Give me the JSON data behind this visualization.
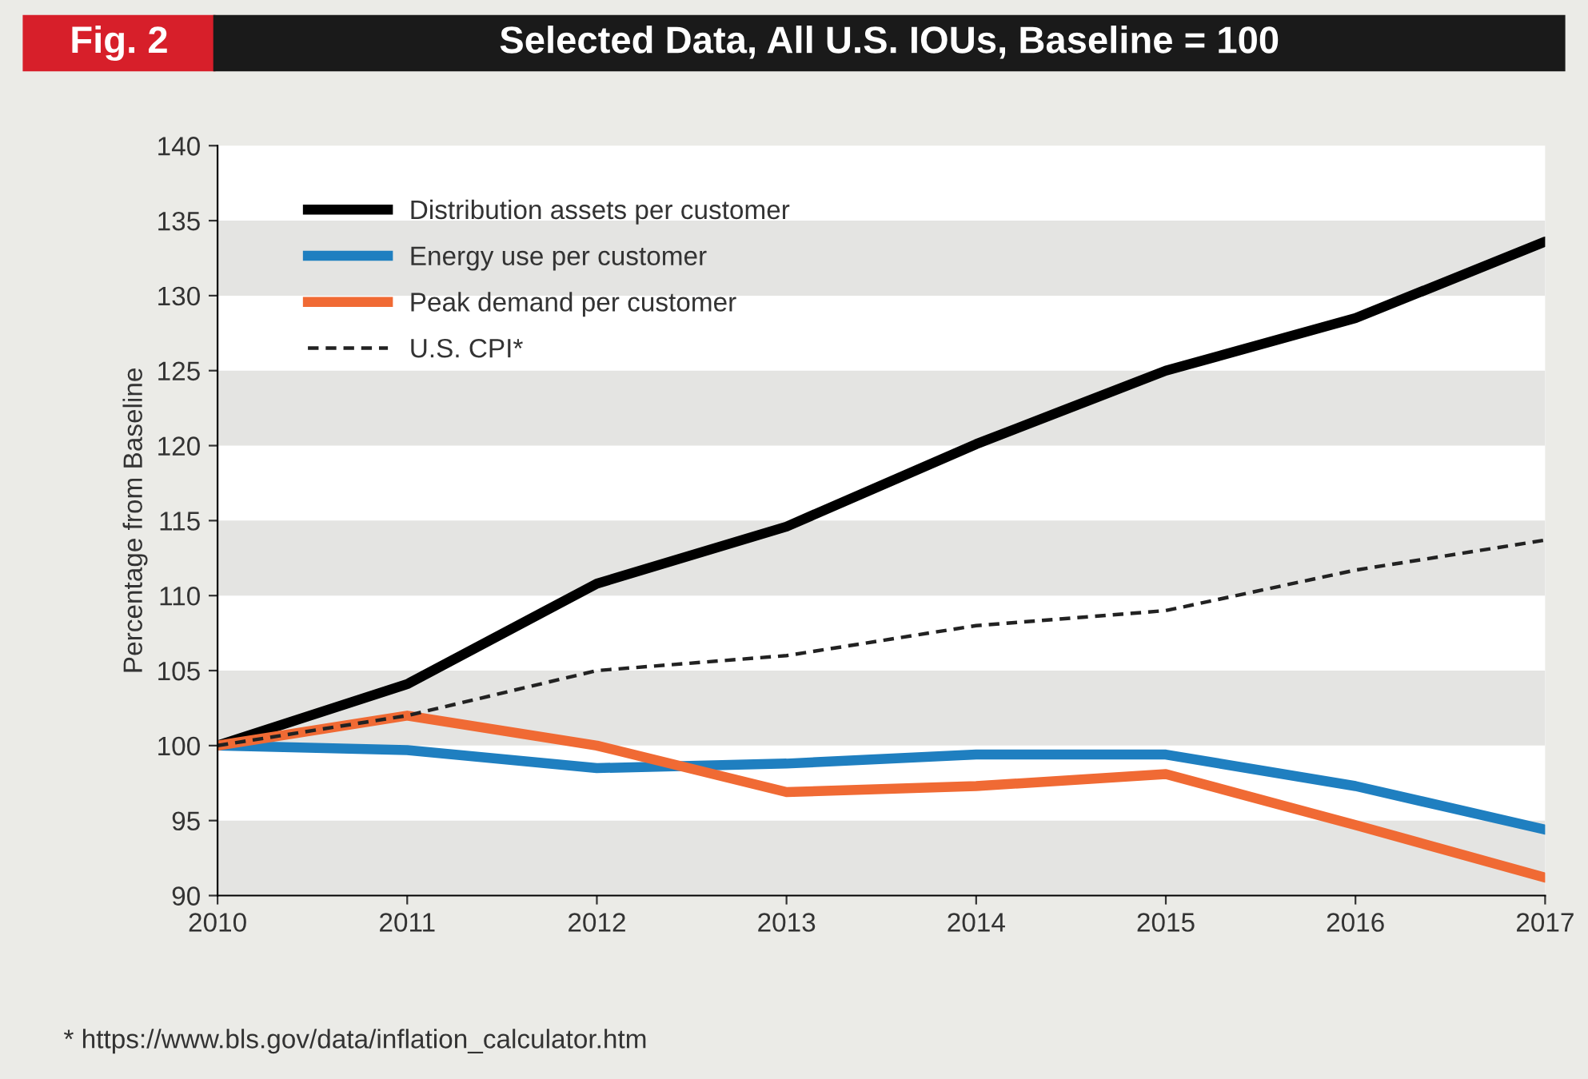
{
  "chart_data": {
    "type": "line",
    "title": "Selected Data, All U.S. IOUs, Baseline = 100",
    "ylabel": "Percentage from Baseline",
    "x": [
      2010,
      2011,
      2012,
      2013,
      2014,
      2015,
      2016,
      2017
    ],
    "series": [
      {
        "name": "Distribution assets per customer",
        "color": "#000000",
        "values": [
          100,
          104.1,
          110.8,
          114.6,
          120.1,
          125.0,
          128.5,
          133.6
        ]
      },
      {
        "name": "Energy use per customer",
        "color": "#1f7fc0",
        "values": [
          100,
          99.7,
          98.5,
          98.8,
          99.4,
          99.4,
          97.3,
          94.4
        ]
      },
      {
        "name": "Peak demand per customer",
        "color": "#f06a34",
        "values": [
          100,
          102,
          100,
          96.9,
          97.3,
          98.1,
          94.7,
          91.2
        ]
      },
      {
        "name": "U.S. CPI*",
        "color": "#222222",
        "line_style": "dashed",
        "values": [
          100,
          102,
          105,
          106,
          108,
          109,
          111.7,
          113.7
        ]
      }
    ],
    "xlim": [
      2010,
      2017
    ],
    "xticks": [
      2010,
      2011,
      2012,
      2013,
      2014,
      2015,
      2016,
      2017
    ],
    "ylim": [
      90,
      140
    ],
    "yticks": [
      90,
      95,
      100,
      105,
      110,
      115,
      120,
      125,
      130,
      135,
      140
    ],
    "bands": [
      {
        "axis": "y",
        "from": 90,
        "to": 95,
        "color": "#e4e4e2"
      },
      {
        "axis": "y",
        "from": 100,
        "to": 105,
        "color": "#e4e4e2"
      },
      {
        "axis": "y",
        "from": 110,
        "to": 115,
        "color": "#e4e4e2"
      },
      {
        "axis": "y",
        "from": 120,
        "to": 125,
        "color": "#e4e4e2"
      },
      {
        "axis": "y",
        "from": 130,
        "to": 135,
        "color": "#e4e4e2"
      }
    ],
    "legend": "top left",
    "annotations": [
      "Fig. 2",
      "* https://www.bls.gov/data/inflation_calculator.htm"
    ]
  }
}
